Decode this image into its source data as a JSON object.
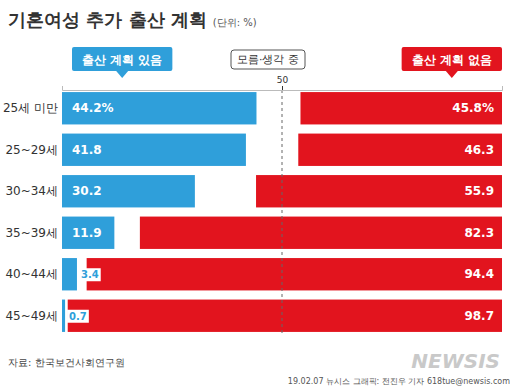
{
  "chart_data": {
    "type": "bar",
    "orientation": "horizontal",
    "title": "기혼여성 추가 출산 계획",
    "subtitle": "(단위: %)",
    "categories": [
      "25세 미만",
      "25~29세",
      "30~34세",
      "35~39세",
      "40~44세",
      "45~49세"
    ],
    "series": [
      {
        "name": "출산 계획 있음",
        "color": "#2f9fda",
        "values": [
          44.2,
          41.8,
          30.2,
          11.9,
          3.4,
          0.7
        ],
        "value_labels": [
          "44.2%",
          "41.8",
          "30.2",
          "11.9",
          "3.4",
          "0.7"
        ]
      },
      {
        "name": "출산 계획 없음",
        "color": "#e2141e",
        "values": [
          45.8,
          46.3,
          55.9,
          82.3,
          94.4,
          98.7
        ],
        "value_labels": [
          "45.8%",
          "46.3",
          "55.9",
          "82.3",
          "94.4",
          "98.7"
        ]
      }
    ],
    "xlim": [
      0,
      100
    ],
    "xticks": [
      50
    ],
    "grid": true,
    "legend": "top",
    "data_labels": true,
    "annotations": [
      "모름·생각 중",
      "자료: 한국보건사회연구원",
      "19.02.07 뉴시스 그래픽: 전진우 기자 618tue@newsis.com",
      "NEWSIS"
    ]
  }
}
